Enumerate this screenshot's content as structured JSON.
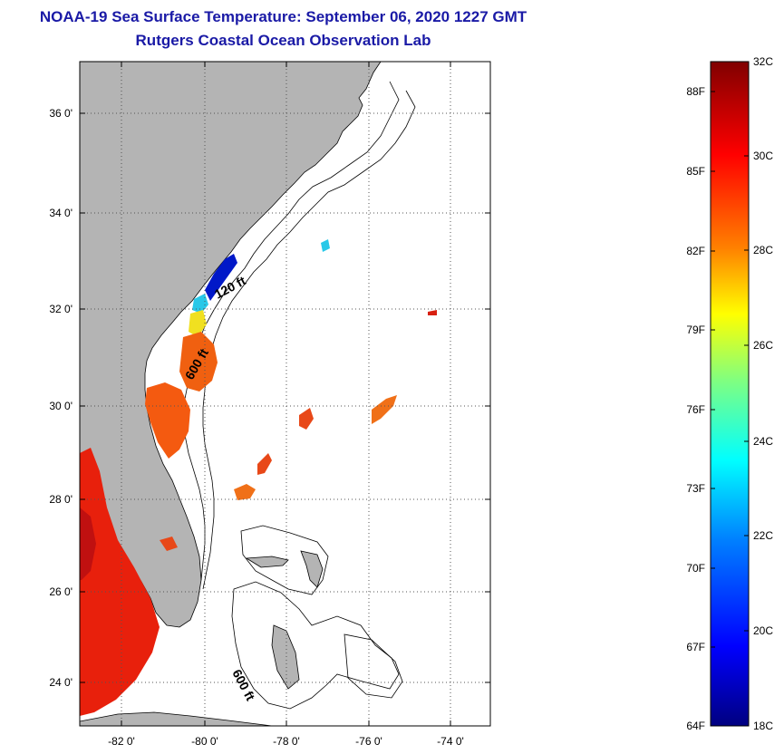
{
  "title": {
    "line1": "NOAA-19 Sea Surface Temperature:  September 06, 2020 1227 GMT",
    "line2": "Rutgers Coastal Ocean Observation Lab"
  },
  "map": {
    "lat_ticks": [
      "36 0'",
      "34 0'",
      "32 0'",
      "30 0'",
      "28 0'",
      "26 0'",
      "24 0'"
    ],
    "lon_ticks": [
      "-82 0'",
      "-80 0'",
      "-78 0'",
      "-76 0'",
      "-74 0'"
    ],
    "contour_labels": [
      "120 ft",
      "600 ft",
      "600 ft"
    ],
    "colors": {
      "land": "#b4b4b4",
      "ocean": "#ffffff",
      "grid": "#555555",
      "contour": "#000000"
    }
  },
  "colorbar": {
    "fahrenheit_labels": [
      "88F",
      "85F",
      "82F",
      "79F",
      "76F",
      "73F",
      "70F",
      "67F",
      "64F"
    ],
    "celsius_labels": [
      "32C",
      "30C",
      "28C",
      "26C",
      "24C",
      "22C",
      "20C",
      "18C"
    ],
    "colors": [
      "#000080",
      "#0000ff",
      "#0080ff",
      "#00ffff",
      "#80ff80",
      "#ffff00",
      "#ff8000",
      "#ff0000",
      "#800000"
    ]
  }
}
